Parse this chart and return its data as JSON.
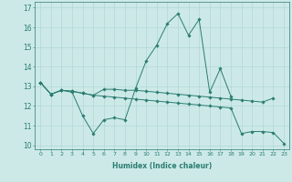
{
  "xlabel": "Humidex (Indice chaleur)",
  "x_values": [
    0,
    1,
    2,
    3,
    4,
    5,
    6,
    7,
    8,
    9,
    10,
    11,
    12,
    13,
    14,
    15,
    16,
    17,
    18,
    19,
    20,
    21,
    22,
    23
  ],
  "line1": [
    13.2,
    12.6,
    12.8,
    12.7,
    11.5,
    10.6,
    11.3,
    11.4,
    11.3,
    12.9,
    14.3,
    15.1,
    16.2,
    16.7,
    15.6,
    16.4,
    12.7,
    13.9,
    12.5,
    null,
    null,
    null,
    null,
    null
  ],
  "line2": [
    13.2,
    12.6,
    12.8,
    12.75,
    12.65,
    12.55,
    12.5,
    12.45,
    12.4,
    12.35,
    12.3,
    12.25,
    12.2,
    12.15,
    12.1,
    12.05,
    12.0,
    11.95,
    11.9,
    10.6,
    10.7,
    10.7,
    10.65,
    10.1
  ],
  "line3": [
    13.2,
    12.6,
    12.8,
    12.75,
    12.65,
    12.55,
    12.85,
    12.85,
    12.8,
    12.8,
    12.75,
    12.7,
    12.65,
    12.6,
    12.55,
    12.5,
    12.45,
    12.4,
    12.35,
    12.3,
    12.25,
    12.2,
    12.4,
    null
  ],
  "ylim": [
    9.8,
    17.3
  ],
  "yticks": [
    10,
    11,
    12,
    13,
    14,
    15,
    16,
    17
  ],
  "color": "#2a7d6f",
  "bg_color": "#cce9e8",
  "grid_color": "#aad4d2",
  "marker": "D",
  "marker_size": 1.8,
  "linewidth": 0.7
}
